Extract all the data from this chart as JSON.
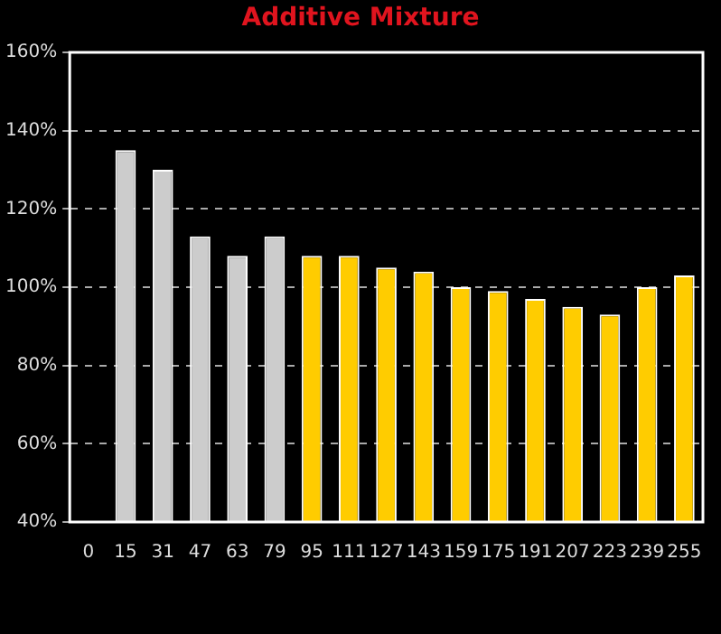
{
  "chart_data": {
    "type": "bar",
    "title": "Additive Mixture",
    "categories": [
      "0",
      "15",
      "31",
      "47",
      "63",
      "79",
      "95",
      "111",
      "127",
      "143",
      "159",
      "175",
      "191",
      "207",
      "223",
      "239",
      "255"
    ],
    "values": [
      null,
      135,
      130,
      113,
      108,
      113,
      108,
      108,
      105,
      104,
      100,
      99,
      97,
      95,
      93,
      100,
      103
    ],
    "colors": [
      "#cccccc",
      "#cccccc",
      "#cccccc",
      "#cccccc",
      "#cccccc",
      "#cccccc",
      "#ffcc00",
      "#ffcc00",
      "#ffcc00",
      "#ffcc00",
      "#ffcc00",
      "#ffcc00",
      "#ffcc00",
      "#ffcc00",
      "#ffcc00",
      "#ffcc00",
      "#ffcc00"
    ],
    "ylim": [
      40,
      160
    ],
    "yticks": [
      {
        "value": 40,
        "label": "40%"
      },
      {
        "value": 60,
        "label": "60%"
      },
      {
        "value": 80,
        "label": "80%"
      },
      {
        "value": 100,
        "label": "100%"
      },
      {
        "value": 120,
        "label": "120%"
      },
      {
        "value": 140,
        "label": "140%"
      },
      {
        "value": 160,
        "label": "160%"
      }
    ],
    "grid": "y"
  }
}
